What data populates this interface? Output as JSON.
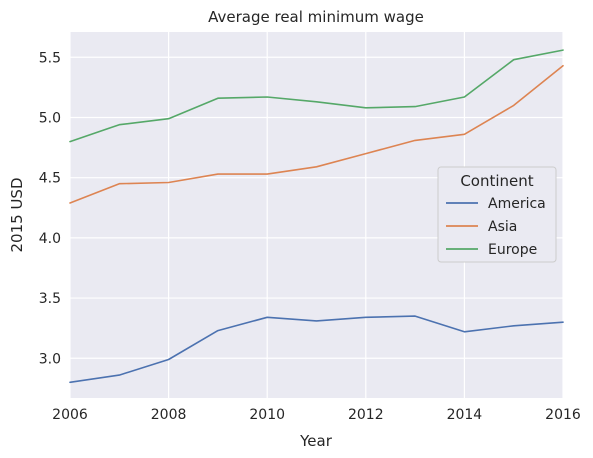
{
  "chart_data": {
    "type": "line",
    "title": "Average real minimum wage",
    "xlabel": "Year",
    "ylabel": "2015 USD",
    "xlim": [
      2006,
      2016
    ],
    "ylim": [
      2.67,
      5.71
    ],
    "xticks": [
      2006,
      2008,
      2010,
      2012,
      2014,
      2016
    ],
    "yticks": [
      3.0,
      3.5,
      4.0,
      4.5,
      5.0,
      5.5
    ],
    "ytick_labels": [
      "3.0",
      "3.5",
      "4.0",
      "4.5",
      "5.0",
      "5.5"
    ],
    "grid": true,
    "legend": {
      "title": "Continent",
      "placement": "center-right"
    },
    "x": [
      2006,
      2007,
      2008,
      2009,
      2010,
      2011,
      2012,
      2013,
      2014,
      2015,
      2016
    ],
    "series": [
      {
        "name": "America",
        "color": "#4c72b0",
        "values": [
          2.8,
          2.86,
          2.99,
          3.23,
          3.34,
          3.31,
          3.34,
          3.35,
          3.22,
          3.27,
          3.3
        ]
      },
      {
        "name": "Asia",
        "color": "#dd8452",
        "values": [
          4.29,
          4.45,
          4.46,
          4.53,
          4.53,
          4.59,
          4.7,
          4.81,
          4.86,
          5.1,
          5.43
        ]
      },
      {
        "name": "Europe",
        "color": "#55a868",
        "values": [
          4.8,
          4.94,
          4.99,
          5.16,
          5.17,
          5.13,
          5.08,
          5.09,
          5.17,
          5.48,
          5.56
        ]
      }
    ]
  }
}
